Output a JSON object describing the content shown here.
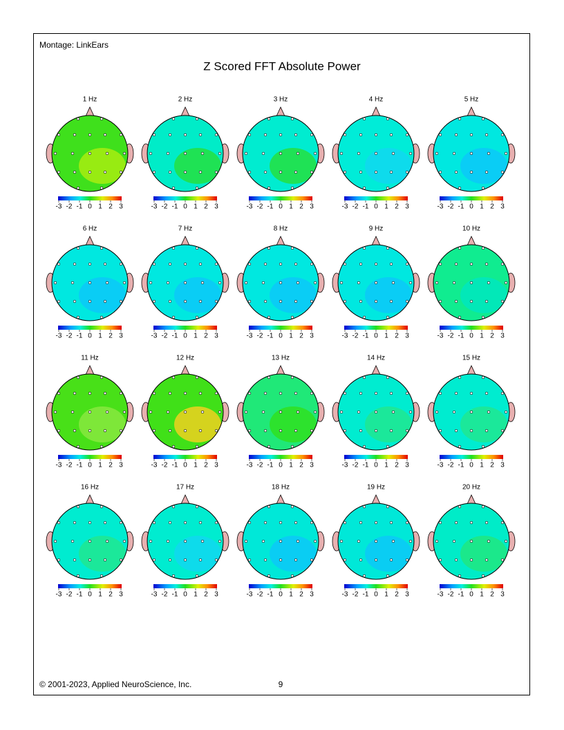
{
  "header": {
    "montage": "Montage:  LinkEars",
    "title": "Z Scored FFT Absolute Power"
  },
  "colorbar": {
    "ticks": [
      -3,
      -2,
      -1,
      0,
      1,
      2,
      3
    ]
  },
  "maps": [
    {
      "label": "1 Hz",
      "color": "#3fe01c",
      "accent": "#a8ec10"
    },
    {
      "label": "2 Hz",
      "color": "#00ecc8",
      "accent": "#24e040"
    },
    {
      "label": "3 Hz",
      "color": "#00ecd0",
      "accent": "#24e040"
    },
    {
      "label": "4 Hz",
      "color": "#00ecd8",
      "accent": "#10d8f0"
    },
    {
      "label": "5 Hz",
      "color": "#00e8e0",
      "accent": "#0cc8f8"
    },
    {
      "label": "6 Hz",
      "color": "#00e8e0",
      "accent": "#0cc8f8"
    },
    {
      "label": "7 Hz",
      "color": "#00e8e0",
      "accent": "#0cc8f8"
    },
    {
      "label": "8 Hz",
      "color": "#00e8e0",
      "accent": "#0cc8f8"
    },
    {
      "label": "9 Hz",
      "color": "#00e8e0",
      "accent": "#0cc8f8"
    },
    {
      "label": "10 Hz",
      "color": "#10ec90",
      "accent": "#00e8c0"
    },
    {
      "label": "11 Hz",
      "color": "#48e018",
      "accent": "#88e840"
    },
    {
      "label": "12 Hz",
      "color": "#40e018",
      "accent": "#f0d020"
    },
    {
      "label": "13 Hz",
      "color": "#20e878",
      "accent": "#30e020"
    },
    {
      "label": "14 Hz",
      "color": "#00ecd0",
      "accent": "#20e890"
    },
    {
      "label": "15 Hz",
      "color": "#00ecd0",
      "accent": "#20e890"
    },
    {
      "label": "16 Hz",
      "color": "#00ecd0",
      "accent": "#20e890"
    },
    {
      "label": "17 Hz",
      "color": "#00ecd0",
      "accent": "#10d8f0"
    },
    {
      "label": "18 Hz",
      "color": "#00e8d8",
      "accent": "#0cc8f8"
    },
    {
      "label": "19 Hz",
      "color": "#00e8d8",
      "accent": "#0cc8f8"
    },
    {
      "label": "20 Hz",
      "color": "#00ecc8",
      "accent": "#20e880"
    }
  ],
  "footer": {
    "copyright": "© 2001-2023, Applied NeuroScience, Inc.",
    "page": "9"
  }
}
